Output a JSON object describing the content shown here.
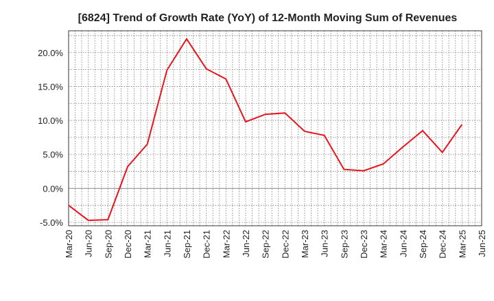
{
  "chart_data": {
    "type": "line",
    "title": "[6824]  Trend of Growth Rate (YoY) of 12-Month Moving Sum of Revenues",
    "xlabel": "",
    "ylabel": "",
    "x_ticks": [
      "Mar-20",
      "Jun-20",
      "Sep-20",
      "Dec-20",
      "Mar-21",
      "Jun-21",
      "Sep-21",
      "Dec-21",
      "Mar-22",
      "Jun-22",
      "Sep-22",
      "Dec-22",
      "Mar-23",
      "Jun-23",
      "Sep-23",
      "Dec-23",
      "Mar-24",
      "Jun-24",
      "Sep-24",
      "Dec-24",
      "Mar-25",
      "Jun-25"
    ],
    "y_ticks": [
      "-5.0%",
      "0.0%",
      "5.0%",
      "10.0%",
      "15.0%",
      "20.0%"
    ],
    "y_tick_values": [
      -5,
      0,
      5,
      10,
      15,
      20
    ],
    "ylim": [
      -5.5,
      23.2
    ],
    "grid": true,
    "series": [
      {
        "color": "#e8141c",
        "x": [
          "Mar-20",
          "Jun-20",
          "Sep-20",
          "Dec-20",
          "Mar-21",
          "Jun-21",
          "Sep-21",
          "Dec-21",
          "Mar-22",
          "Jun-22",
          "Sep-22",
          "Dec-22",
          "Mar-23",
          "Jun-23",
          "Sep-23",
          "Dec-23",
          "Mar-24",
          "Jun-24",
          "Sep-24",
          "Dec-24",
          "Mar-25"
        ],
        "values": [
          -2.5,
          -4.7,
          -4.6,
          3.2,
          6.5,
          17.4,
          22.0,
          17.6,
          16.1,
          9.8,
          10.9,
          11.1,
          8.4,
          7.8,
          2.8,
          2.6,
          3.6,
          6.1,
          8.5,
          5.3,
          9.4
        ]
      }
    ]
  }
}
